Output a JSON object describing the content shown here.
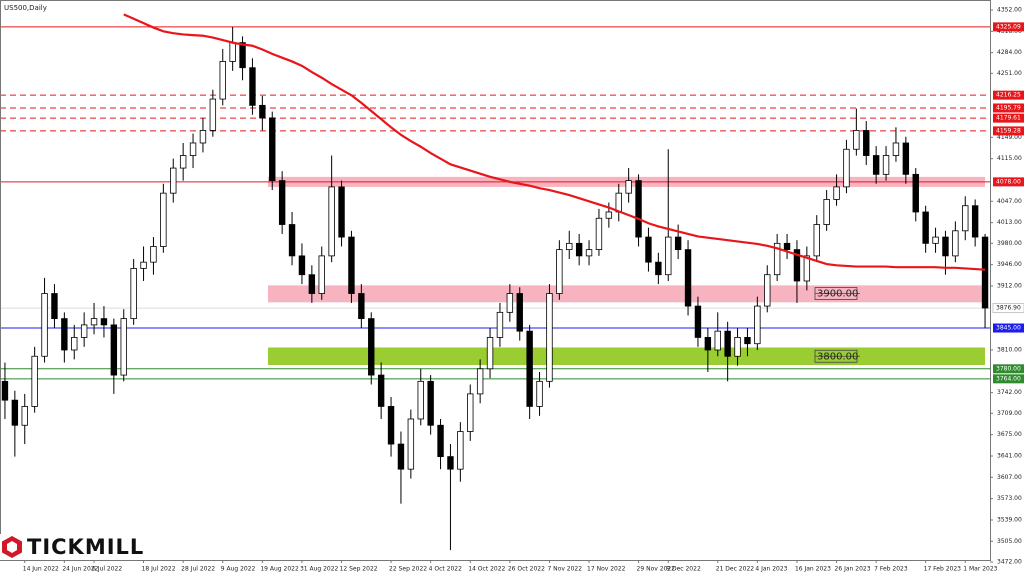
{
  "chart_data": {
    "type": "candlestick",
    "title": "US500,Daily",
    "brand": "TICKMILL",
    "up_color": "#ffffff",
    "down_color": "#000000",
    "wick_color": "#000000",
    "ylim": [
      3472,
      4352
    ],
    "yticks": [
      {
        "value": 4352,
        "label": "4352.00"
      },
      {
        "value": 4318,
        "label": "4318.00"
      },
      {
        "value": 4284,
        "label": "4284.00"
      },
      {
        "value": 4251,
        "label": "4251.00"
      },
      {
        "value": 4149,
        "label": "4149.00"
      },
      {
        "value": 4115,
        "label": "4115.00"
      },
      {
        "value": 4047,
        "label": "4047.00"
      },
      {
        "value": 4013,
        "label": "4013.00"
      },
      {
        "value": 3980,
        "label": "3980.00"
      },
      {
        "value": 3946,
        "label": "3946.00"
      },
      {
        "value": 3912,
        "label": "3912.00"
      },
      {
        "value": 3810,
        "label": "3810.00"
      },
      {
        "value": 3742,
        "label": "3742.00"
      },
      {
        "value": 3709,
        "label": "3709.00"
      },
      {
        "value": 3675,
        "label": "3675.00"
      },
      {
        "value": 3641,
        "label": "3641.00"
      },
      {
        "value": 3607,
        "label": "3607.00"
      },
      {
        "value": 3573,
        "label": "3573.00"
      },
      {
        "value": 3539,
        "label": "3539.00"
      },
      {
        "value": 3505,
        "label": "3505.00"
      },
      {
        "value": 3472,
        "label": "3472.00"
      }
    ],
    "categories": [
      null,
      null,
      "14 Jun 2022",
      null,
      null,
      null,
      "24 Jun 2022",
      null,
      null,
      "6 Jul 2022",
      null,
      null,
      null,
      null,
      "18 Jul 2022",
      null,
      null,
      null,
      "28 Jul 2022",
      null,
      null,
      null,
      "9 Aug 2022",
      null,
      null,
      null,
      "19 Aug 2022",
      null,
      null,
      null,
      "31 Aug 2022",
      null,
      null,
      null,
      "12 Sep 2022",
      null,
      null,
      null,
      null,
      "22 Sep 2022",
      null,
      null,
      null,
      "4 Oct 2022",
      null,
      null,
      null,
      "14 Oct 2022",
      null,
      null,
      null,
      "26 Oct 2022",
      null,
      null,
      null,
      "7 Nov 2022",
      null,
      null,
      null,
      "17 Nov 2022",
      null,
      null,
      null,
      null,
      "29 Nov 2022",
      null,
      null,
      "9 Dec 2022",
      null,
      null,
      null,
      null,
      "21 Dec 2022",
      null,
      null,
      null,
      "4 Jan 2023",
      null,
      null,
      null,
      "16 Jan 2023",
      null,
      null,
      null,
      "26 Jan 2023",
      null,
      null,
      null,
      "7 Feb 2023",
      null,
      null,
      null,
      null,
      "17 Feb 2023",
      null,
      null,
      null,
      "1 Mar 2023",
      null,
      null
    ],
    "ohlc": [
      [
        3760,
        3790,
        3700,
        3730
      ],
      [
        3730,
        3745,
        3640,
        3690
      ],
      [
        3690,
        3740,
        3660,
        3720
      ],
      [
        3720,
        3815,
        3710,
        3800
      ],
      [
        3800,
        3925,
        3790,
        3900
      ],
      [
        3900,
        3915,
        3845,
        3860
      ],
      [
        3860,
        3870,
        3790,
        3810
      ],
      [
        3810,
        3850,
        3795,
        3830
      ],
      [
        3830,
        3870,
        3815,
        3850
      ],
      [
        3850,
        3885,
        3835,
        3860
      ],
      [
        3860,
        3880,
        3830,
        3850
      ],
      [
        3850,
        3860,
        3740,
        3770
      ],
      [
        3770,
        3875,
        3760,
        3860
      ],
      [
        3860,
        3955,
        3850,
        3940
      ],
      [
        3940,
        3975,
        3920,
        3950
      ],
      [
        3950,
        3990,
        3930,
        3975
      ],
      [
        3975,
        4075,
        3965,
        4060
      ],
      [
        4060,
        4115,
        4045,
        4100
      ],
      [
        4100,
        4140,
        4080,
        4120
      ],
      [
        4120,
        4155,
        4100,
        4140
      ],
      [
        4140,
        4180,
        4125,
        4160
      ],
      [
        4160,
        4225,
        4150,
        4210
      ],
      [
        4210,
        4290,
        4200,
        4270
      ],
      [
        4270,
        4325,
        4255,
        4300
      ],
      [
        4300,
        4310,
        4240,
        4260
      ],
      [
        4260,
        4275,
        4185,
        4200
      ],
      [
        4200,
        4215,
        4160,
        4180
      ],
      [
        4180,
        4190,
        4065,
        4080
      ],
      [
        4080,
        4095,
        3995,
        4010
      ],
      [
        4010,
        4030,
        3945,
        3960
      ],
      [
        3960,
        3980,
        3915,
        3930
      ],
      [
        3930,
        3945,
        3885,
        3900
      ],
      [
        3900,
        3975,
        3890,
        3960
      ],
      [
        3960,
        4120,
        3950,
        4070
      ],
      [
        4070,
        4080,
        3975,
        3990
      ],
      [
        3990,
        4000,
        3885,
        3900
      ],
      [
        3900,
        3915,
        3845,
        3860
      ],
      [
        3860,
        3870,
        3755,
        3770
      ],
      [
        3770,
        3790,
        3700,
        3720
      ],
      [
        3720,
        3735,
        3640,
        3660
      ],
      [
        3660,
        3680,
        3565,
        3620
      ],
      [
        3620,
        3715,
        3605,
        3700
      ],
      [
        3700,
        3780,
        3690,
        3760
      ],
      [
        3760,
        3770,
        3675,
        3690
      ],
      [
        3690,
        3700,
        3620,
        3640
      ],
      [
        3640,
        3660,
        3491,
        3620
      ],
      [
        3620,
        3695,
        3600,
        3680
      ],
      [
        3680,
        3755,
        3665,
        3740
      ],
      [
        3740,
        3795,
        3725,
        3780
      ],
      [
        3780,
        3845,
        3765,
        3830
      ],
      [
        3830,
        3885,
        3815,
        3870
      ],
      [
        3870,
        3915,
        3855,
        3900
      ],
      [
        3900,
        3910,
        3825,
        3840
      ],
      [
        3840,
        3850,
        3700,
        3720
      ],
      [
        3720,
        3775,
        3705,
        3760
      ],
      [
        3760,
        3915,
        3750,
        3900
      ],
      [
        3900,
        3985,
        3890,
        3970
      ],
      [
        3970,
        4000,
        3955,
        3980
      ],
      [
        3980,
        3995,
        3945,
        3960
      ],
      [
        3960,
        3985,
        3945,
        3970
      ],
      [
        3970,
        4035,
        3960,
        4020
      ],
      [
        4020,
        4045,
        4005,
        4030
      ],
      [
        4030,
        4075,
        4015,
        4060
      ],
      [
        4060,
        4100,
        4045,
        4080
      ],
      [
        4080,
        4090,
        3975,
        3990
      ],
      [
        3990,
        4005,
        3935,
        3950
      ],
      [
        3950,
        3965,
        3915,
        3930
      ],
      [
        3930,
        4130,
        3920,
        3990
      ],
      [
        3990,
        4010,
        3955,
        3970
      ],
      [
        3970,
        3985,
        3865,
        3880
      ],
      [
        3880,
        3895,
        3815,
        3830
      ],
      [
        3830,
        3845,
        3775,
        3810
      ],
      [
        3810,
        3870,
        3800,
        3840
      ],
      [
        3840,
        3855,
        3760,
        3800
      ],
      [
        3800,
        3845,
        3785,
        3830
      ],
      [
        3830,
        3845,
        3800,
        3820
      ],
      [
        3820,
        3895,
        3810,
        3880
      ],
      [
        3880,
        3945,
        3870,
        3930
      ],
      [
        3930,
        3995,
        3920,
        3980
      ],
      [
        3980,
        3995,
        3955,
        3970
      ],
      [
        3970,
        3985,
        3885,
        3920
      ],
      [
        3920,
        3975,
        3905,
        3960
      ],
      [
        3960,
        4025,
        3950,
        4010
      ],
      [
        4010,
        4065,
        4000,
        4050
      ],
      [
        4050,
        4090,
        4040,
        4070
      ],
      [
        4070,
        4145,
        4060,
        4130
      ],
      [
        4130,
        4195,
        4120,
        4160
      ],
      [
        4160,
        4175,
        4105,
        4120
      ],
      [
        4120,
        4135,
        4075,
        4090
      ],
      [
        4090,
        4135,
        4080,
        4120
      ],
      [
        4120,
        4165,
        4110,
        4140
      ],
      [
        4140,
        4150,
        4075,
        4090
      ],
      [
        4090,
        4100,
        4015,
        4030
      ],
      [
        4030,
        4040,
        3965,
        3980
      ],
      [
        3980,
        4005,
        3965,
        3990
      ],
      [
        3990,
        4000,
        3930,
        3960
      ],
      [
        3960,
        4015,
        3950,
        4000
      ],
      [
        4000,
        4055,
        3985,
        4040
      ],
      [
        4040,
        4050,
        3975,
        3990
      ],
      [
        3990,
        3995,
        3845,
        3876.9
      ]
    ],
    "ma": {
      "color": "#e8161b",
      "values": [
        null,
        null,
        null,
        null,
        null,
        null,
        null,
        null,
        null,
        null,
        null,
        null,
        4345,
        4338,
        4331,
        4324,
        4318,
        4315,
        4313,
        4312,
        4311,
        4308,
        4304,
        4300,
        4297,
        4295,
        4289,
        4282,
        4276,
        4270,
        4263,
        4253,
        4244,
        4234,
        4225,
        4216,
        4204,
        4191,
        4178,
        4165,
        4153,
        4143,
        4134,
        4124,
        4115,
        4106,
        4101,
        4096,
        4091,
        4086,
        4082,
        4078,
        4075,
        4072,
        4068,
        4065,
        4061,
        4057,
        4052,
        4047,
        4042,
        4037,
        4031,
        4025,
        4019,
        4012,
        4007,
        4003,
        3999,
        3995,
        3991,
        3989,
        3987,
        3985,
        3983,
        3981,
        3979,
        3976,
        3972,
        3967,
        3962,
        3957,
        3952,
        3947,
        3945,
        3944,
        3943,
        3943,
        3943,
        3943,
        3942,
        3942,
        3942,
        3942,
        3942,
        3941,
        3941,
        3940,
        3939,
        3938
      ]
    },
    "zones": [
      {
        "from": 4070,
        "to": 4086,
        "color": "#f7b3c0"
      },
      {
        "from": 3886,
        "to": 3913,
        "color": "#f7b3c0",
        "value": 3900,
        "label": "3900.00"
      },
      {
        "from": 3786,
        "to": 3814,
        "color": "#9acd32",
        "value": 3800,
        "label": "3800.00"
      }
    ],
    "levels": [
      {
        "value": 4325.09,
        "label": "4325.09",
        "color": "#e8161b",
        "dashed": false
      },
      {
        "value": 4216.25,
        "label": "4216.25",
        "color": "#e8161b",
        "dashed": true
      },
      {
        "value": 4195.79,
        "label": "4195.79",
        "color": "#e8161b",
        "dashed": true
      },
      {
        "value": 4179.61,
        "label": "4179.61",
        "color": "#e8161b",
        "dashed": true
      },
      {
        "value": 4159.28,
        "label": "4159.28",
        "color": "#e8161b",
        "dashed": true
      },
      {
        "value": 4078,
        "label": "4078.00",
        "color": "#e8161b",
        "dashed": false
      },
      {
        "value": 3845,
        "label": "3845.00",
        "color": "#1c1cf0",
        "dashed": false
      },
      {
        "value": 3780,
        "label": "3780.00",
        "color": "#2e8b2e",
        "dashed": false
      },
      {
        "value": 3764,
        "label": "3764.00",
        "color": "#2e8b2e",
        "dashed": false
      }
    ],
    "last_price": {
      "value": 3876.9,
      "label": "3876.90",
      "color": "#c8c8c8"
    }
  }
}
